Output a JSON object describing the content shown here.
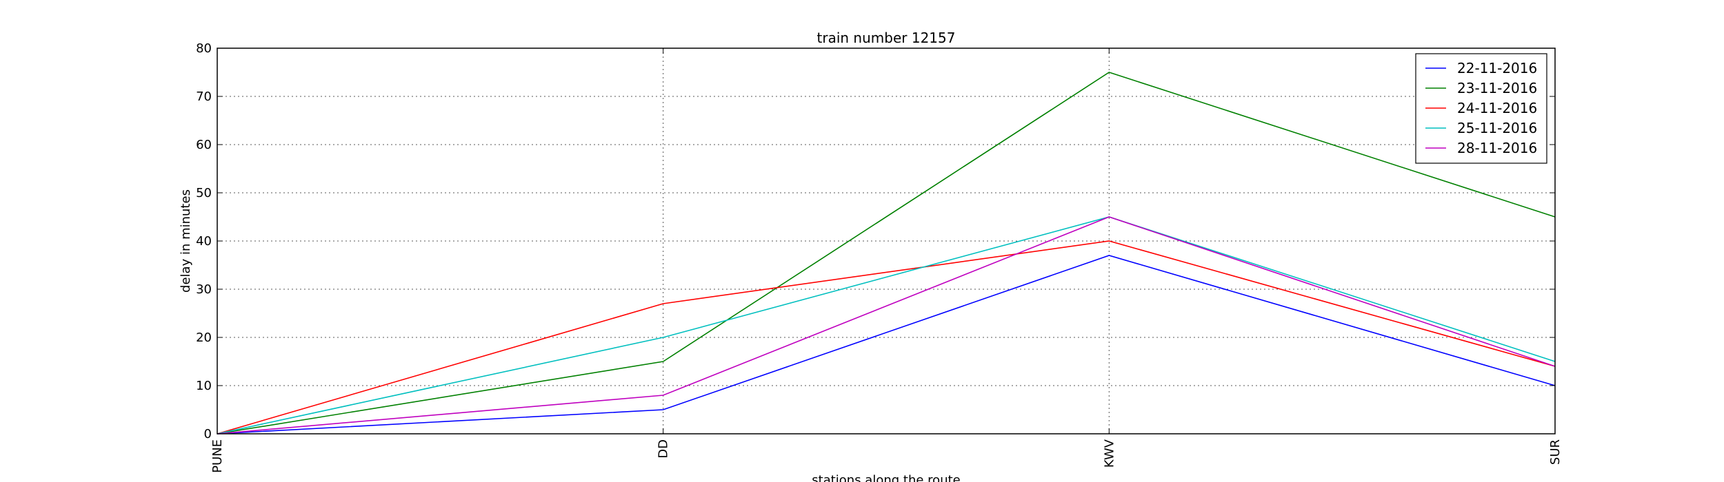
{
  "chart_data": {
    "type": "line",
    "title": "train number 12157",
    "xlabel": "stations along the route",
    "ylabel": "delay in minutes",
    "categories": [
      "PUNE",
      "DD",
      "KWV",
      "SUR"
    ],
    "ylim": [
      0,
      80
    ],
    "yticks": [
      0,
      10,
      20,
      30,
      40,
      50,
      60,
      70,
      80
    ],
    "grid": true,
    "legend_position": "top-right",
    "series": [
      {
        "name": "22-11-2016",
        "color": "#0000ff",
        "values": [
          0,
          5,
          37,
          10
        ]
      },
      {
        "name": "23-11-2016",
        "color": "#008000",
        "values": [
          0,
          15,
          75,
          45
        ]
      },
      {
        "name": "24-11-2016",
        "color": "#ff0000",
        "values": [
          0,
          27,
          40,
          14
        ]
      },
      {
        "name": "25-11-2016",
        "color": "#00bfbf",
        "values": [
          0,
          20,
          45,
          15
        ]
      },
      {
        "name": "28-11-2016",
        "color": "#bf00bf",
        "values": [
          0,
          8,
          45,
          14
        ]
      }
    ]
  }
}
